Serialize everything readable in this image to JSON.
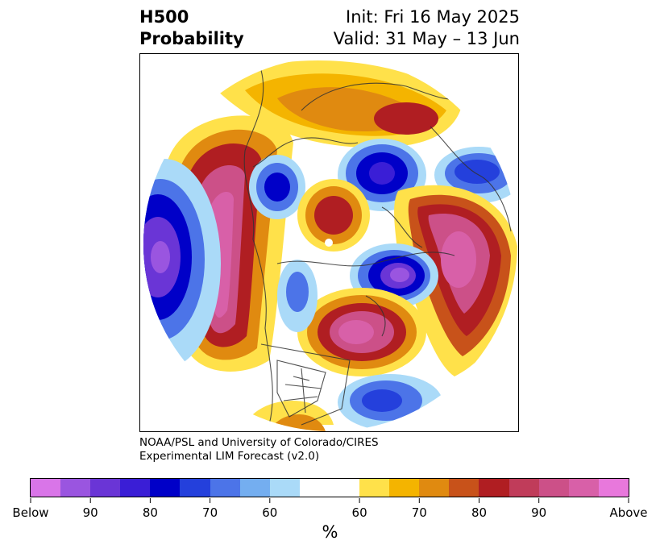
{
  "title": {
    "left_line1": "H500",
    "left_line2": "Probability",
    "right_line1": "Init: Fri 16 May 2025",
    "right_line2": "Valid: 31 May – 13 Jun"
  },
  "credit": {
    "line1": "NOAA/PSL and University of Colorado/CIRES",
    "line2": "Experimental LIM Forecast (v2.0)"
  },
  "colorbar": {
    "colors": [
      "#d975e8",
      "#9a55e0",
      "#6a35d6",
      "#3a1ed6",
      "#0000c8",
      "#2440dc",
      "#4c74e8",
      "#74aef0",
      "#aadaf8",
      "#ffffff",
      "#ffe14a",
      "#f4b400",
      "#e08a10",
      "#c8521a",
      "#b01e22",
      "#c03c5a",
      "#cc5088",
      "#d860a8",
      "#e878dc"
    ],
    "tick_labels": [
      "Below",
      "90",
      "80",
      "70",
      "60",
      "60",
      "70",
      "80",
      "90",
      "Above"
    ],
    "unit": "%"
  },
  "map": {
    "projection": "north-polar-stereographic",
    "palette_note_colors": {
      "above_strong": "#d860a8",
      "above_mid": "#b01e22",
      "above_weak": "#f4b400",
      "below_strong": "#6a35d6",
      "below_mid": "#0000c8",
      "below_weak": "#74aef0"
    }
  }
}
